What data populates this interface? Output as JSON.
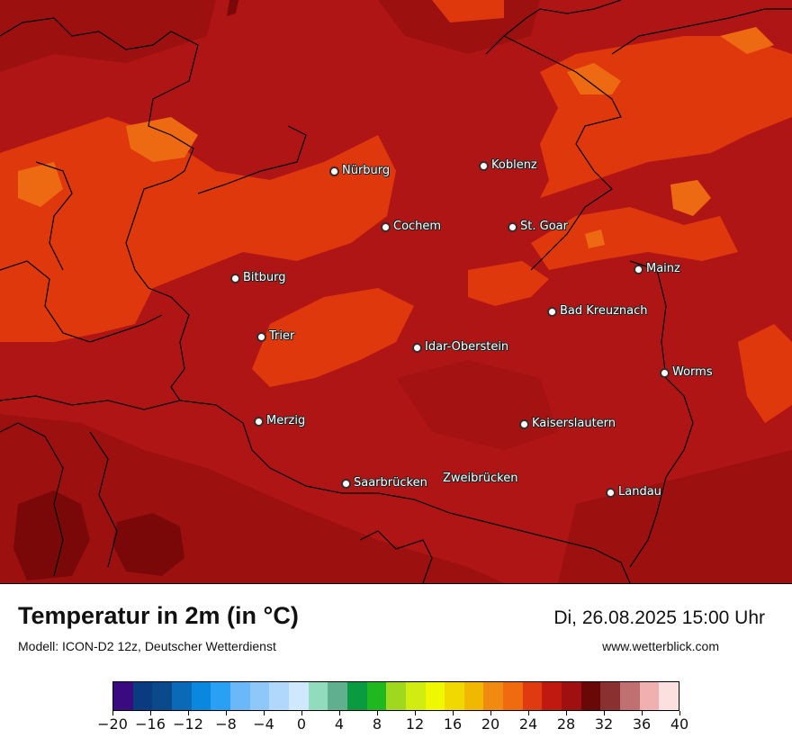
{
  "map": {
    "cities": [
      {
        "id": "nuerburg",
        "name": "Nürburg"
      },
      {
        "id": "koblenz",
        "name": "Koblenz"
      },
      {
        "id": "cochem",
        "name": "Cochem"
      },
      {
        "id": "st-goar",
        "name": "St. Goar"
      },
      {
        "id": "bitburg",
        "name": "Bitburg"
      },
      {
        "id": "mainz",
        "name": "Mainz"
      },
      {
        "id": "bad-kreuznach",
        "name": "Bad Kreuznach"
      },
      {
        "id": "trier",
        "name": "Trier"
      },
      {
        "id": "idar-oberstein",
        "name": "Idar-Oberstein"
      },
      {
        "id": "worms",
        "name": "Worms"
      },
      {
        "id": "merzig",
        "name": "Merzig"
      },
      {
        "id": "kaiserslautern",
        "name": "Kaiserslautern"
      },
      {
        "id": "saarbruecken",
        "name": "Saarbrücken"
      },
      {
        "id": "zweibruecken",
        "name": "Zweibrücken"
      },
      {
        "id": "landau",
        "name": "Landau"
      }
    ],
    "colors": {
      "base": "#b01515",
      "dark_red": "#991010",
      "darkest_red": "#7a0808",
      "orange_red": "#e0380d",
      "orange": "#ee6a12",
      "border": "#000000"
    }
  },
  "header": {
    "title": "Temperatur in 2m (in °C)",
    "model": "Modell: ICON-D2 12z, Deutscher Wetterdienst",
    "datetime": "Di, 26.08.2025 15:00 Uhr",
    "website": "www.wetterblick.com"
  },
  "legend": {
    "colors": [
      "#3a0a80",
      "#0a3a80",
      "#0a4a8a",
      "#0a6ab8",
      "#0a88e0",
      "#2aa0f4",
      "#6ab8f8",
      "#8ec8fa",
      "#b0d8fc",
      "#d0e8fe",
      "#90dcbc",
      "#60b090",
      "#0a9a40",
      "#20b820",
      "#a0d820",
      "#d0ec10",
      "#f0f800",
      "#f0d800",
      "#f0b800",
      "#f08a10",
      "#f06a10",
      "#e03a10",
      "#c01a10",
      "#a01010",
      "#6a0808",
      "#8a3030",
      "#c07070",
      "#f0b0b0",
      "#fce0e0"
    ],
    "tick_labels": [
      "−20",
      "−16",
      "−12",
      "−8",
      "−4",
      "0",
      "4",
      "8",
      "12",
      "16",
      "20",
      "24",
      "28",
      "32",
      "36",
      "40"
    ]
  }
}
